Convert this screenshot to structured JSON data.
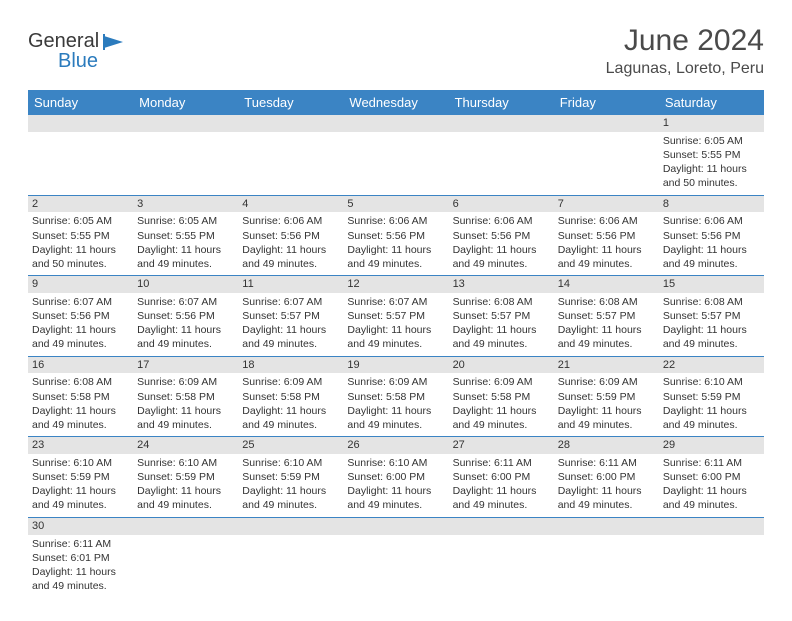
{
  "brand": {
    "general": "General",
    "blue": "Blue"
  },
  "title": "June 2024",
  "location": "Lagunas, Loreto, Peru",
  "daysOfWeek": [
    "Sunday",
    "Monday",
    "Tuesday",
    "Wednesday",
    "Thursday",
    "Friday",
    "Saturday"
  ],
  "colors": {
    "headerBg": "#3b84c4",
    "headerText": "#ffffff",
    "dayBarBg": "#e4e4e4",
    "brandBlue": "#2b7bbd",
    "textDark": "#4a4a4a",
    "rowBorder": "#3b84c4"
  },
  "weeks": [
    [
      {
        "day": "",
        "sunrise": "",
        "sunset": "",
        "daylight": ""
      },
      {
        "day": "",
        "sunrise": "",
        "sunset": "",
        "daylight": ""
      },
      {
        "day": "",
        "sunrise": "",
        "sunset": "",
        "daylight": ""
      },
      {
        "day": "",
        "sunrise": "",
        "sunset": "",
        "daylight": ""
      },
      {
        "day": "",
        "sunrise": "",
        "sunset": "",
        "daylight": ""
      },
      {
        "day": "",
        "sunrise": "",
        "sunset": "",
        "daylight": ""
      },
      {
        "day": "1",
        "sunrise": "Sunrise: 6:05 AM",
        "sunset": "Sunset: 5:55 PM",
        "daylight": "Daylight: 11 hours and 50 minutes."
      }
    ],
    [
      {
        "day": "2",
        "sunrise": "Sunrise: 6:05 AM",
        "sunset": "Sunset: 5:55 PM",
        "daylight": "Daylight: 11 hours and 50 minutes."
      },
      {
        "day": "3",
        "sunrise": "Sunrise: 6:05 AM",
        "sunset": "Sunset: 5:55 PM",
        "daylight": "Daylight: 11 hours and 49 minutes."
      },
      {
        "day": "4",
        "sunrise": "Sunrise: 6:06 AM",
        "sunset": "Sunset: 5:56 PM",
        "daylight": "Daylight: 11 hours and 49 minutes."
      },
      {
        "day": "5",
        "sunrise": "Sunrise: 6:06 AM",
        "sunset": "Sunset: 5:56 PM",
        "daylight": "Daylight: 11 hours and 49 minutes."
      },
      {
        "day": "6",
        "sunrise": "Sunrise: 6:06 AM",
        "sunset": "Sunset: 5:56 PM",
        "daylight": "Daylight: 11 hours and 49 minutes."
      },
      {
        "day": "7",
        "sunrise": "Sunrise: 6:06 AM",
        "sunset": "Sunset: 5:56 PM",
        "daylight": "Daylight: 11 hours and 49 minutes."
      },
      {
        "day": "8",
        "sunrise": "Sunrise: 6:06 AM",
        "sunset": "Sunset: 5:56 PM",
        "daylight": "Daylight: 11 hours and 49 minutes."
      }
    ],
    [
      {
        "day": "9",
        "sunrise": "Sunrise: 6:07 AM",
        "sunset": "Sunset: 5:56 PM",
        "daylight": "Daylight: 11 hours and 49 minutes."
      },
      {
        "day": "10",
        "sunrise": "Sunrise: 6:07 AM",
        "sunset": "Sunset: 5:56 PM",
        "daylight": "Daylight: 11 hours and 49 minutes."
      },
      {
        "day": "11",
        "sunrise": "Sunrise: 6:07 AM",
        "sunset": "Sunset: 5:57 PM",
        "daylight": "Daylight: 11 hours and 49 minutes."
      },
      {
        "day": "12",
        "sunrise": "Sunrise: 6:07 AM",
        "sunset": "Sunset: 5:57 PM",
        "daylight": "Daylight: 11 hours and 49 minutes."
      },
      {
        "day": "13",
        "sunrise": "Sunrise: 6:08 AM",
        "sunset": "Sunset: 5:57 PM",
        "daylight": "Daylight: 11 hours and 49 minutes."
      },
      {
        "day": "14",
        "sunrise": "Sunrise: 6:08 AM",
        "sunset": "Sunset: 5:57 PM",
        "daylight": "Daylight: 11 hours and 49 minutes."
      },
      {
        "day": "15",
        "sunrise": "Sunrise: 6:08 AM",
        "sunset": "Sunset: 5:57 PM",
        "daylight": "Daylight: 11 hours and 49 minutes."
      }
    ],
    [
      {
        "day": "16",
        "sunrise": "Sunrise: 6:08 AM",
        "sunset": "Sunset: 5:58 PM",
        "daylight": "Daylight: 11 hours and 49 minutes."
      },
      {
        "day": "17",
        "sunrise": "Sunrise: 6:09 AM",
        "sunset": "Sunset: 5:58 PM",
        "daylight": "Daylight: 11 hours and 49 minutes."
      },
      {
        "day": "18",
        "sunrise": "Sunrise: 6:09 AM",
        "sunset": "Sunset: 5:58 PM",
        "daylight": "Daylight: 11 hours and 49 minutes."
      },
      {
        "day": "19",
        "sunrise": "Sunrise: 6:09 AM",
        "sunset": "Sunset: 5:58 PM",
        "daylight": "Daylight: 11 hours and 49 minutes."
      },
      {
        "day": "20",
        "sunrise": "Sunrise: 6:09 AM",
        "sunset": "Sunset: 5:58 PM",
        "daylight": "Daylight: 11 hours and 49 minutes."
      },
      {
        "day": "21",
        "sunrise": "Sunrise: 6:09 AM",
        "sunset": "Sunset: 5:59 PM",
        "daylight": "Daylight: 11 hours and 49 minutes."
      },
      {
        "day": "22",
        "sunrise": "Sunrise: 6:10 AM",
        "sunset": "Sunset: 5:59 PM",
        "daylight": "Daylight: 11 hours and 49 minutes."
      }
    ],
    [
      {
        "day": "23",
        "sunrise": "Sunrise: 6:10 AM",
        "sunset": "Sunset: 5:59 PM",
        "daylight": "Daylight: 11 hours and 49 minutes."
      },
      {
        "day": "24",
        "sunrise": "Sunrise: 6:10 AM",
        "sunset": "Sunset: 5:59 PM",
        "daylight": "Daylight: 11 hours and 49 minutes."
      },
      {
        "day": "25",
        "sunrise": "Sunrise: 6:10 AM",
        "sunset": "Sunset: 5:59 PM",
        "daylight": "Daylight: 11 hours and 49 minutes."
      },
      {
        "day": "26",
        "sunrise": "Sunrise: 6:10 AM",
        "sunset": "Sunset: 6:00 PM",
        "daylight": "Daylight: 11 hours and 49 minutes."
      },
      {
        "day": "27",
        "sunrise": "Sunrise: 6:11 AM",
        "sunset": "Sunset: 6:00 PM",
        "daylight": "Daylight: 11 hours and 49 minutes."
      },
      {
        "day": "28",
        "sunrise": "Sunrise: 6:11 AM",
        "sunset": "Sunset: 6:00 PM",
        "daylight": "Daylight: 11 hours and 49 minutes."
      },
      {
        "day": "29",
        "sunrise": "Sunrise: 6:11 AM",
        "sunset": "Sunset: 6:00 PM",
        "daylight": "Daylight: 11 hours and 49 minutes."
      }
    ],
    [
      {
        "day": "30",
        "sunrise": "Sunrise: 6:11 AM",
        "sunset": "Sunset: 6:01 PM",
        "daylight": "Daylight: 11 hours and 49 minutes."
      },
      {
        "day": "",
        "sunrise": "",
        "sunset": "",
        "daylight": ""
      },
      {
        "day": "",
        "sunrise": "",
        "sunset": "",
        "daylight": ""
      },
      {
        "day": "",
        "sunrise": "",
        "sunset": "",
        "daylight": ""
      },
      {
        "day": "",
        "sunrise": "",
        "sunset": "",
        "daylight": ""
      },
      {
        "day": "",
        "sunrise": "",
        "sunset": "",
        "daylight": ""
      },
      {
        "day": "",
        "sunrise": "",
        "sunset": "",
        "daylight": ""
      }
    ]
  ]
}
